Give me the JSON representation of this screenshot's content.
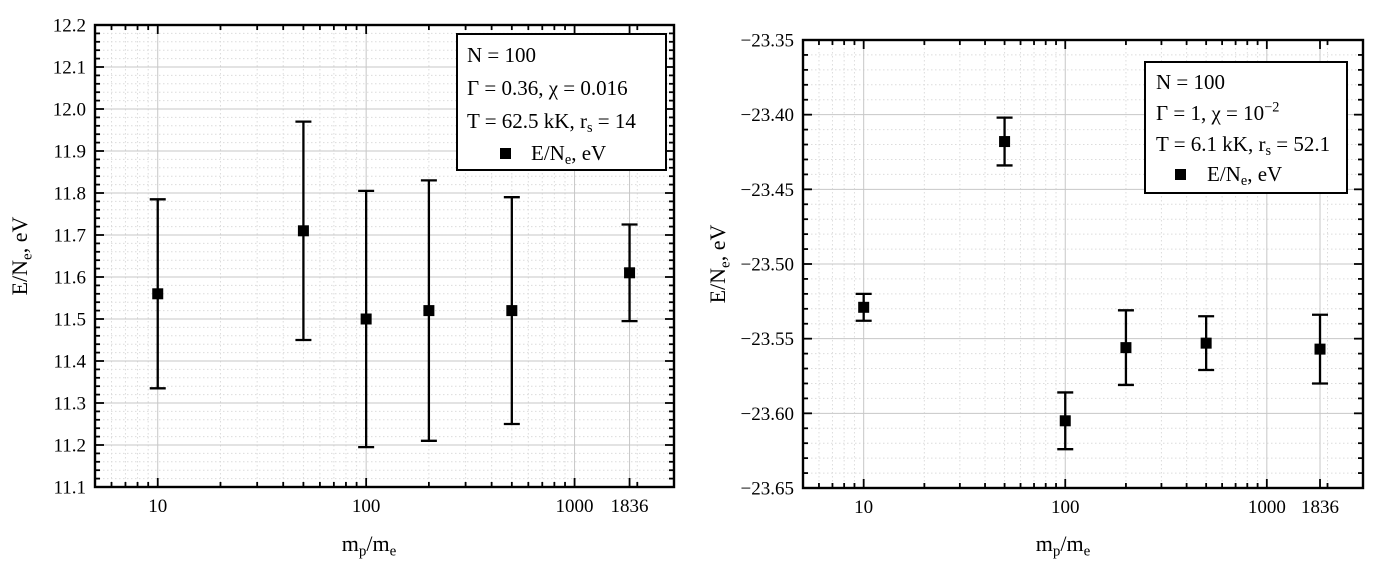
{
  "figure": {
    "background": "#ffffff",
    "ink_color": "#000000",
    "grid_major_color": "#c7c7c7",
    "grid_minor_color": "#dcdcdc",
    "marker_color": "#000000"
  },
  "chart_data": [
    {
      "type": "scatter",
      "panel": "left",
      "x_scale": "log",
      "xlim": [
        5,
        3000
      ],
      "ylim": [
        11.1,
        12.2
      ],
      "y_major_step": 0.1,
      "y_minor_step": 0.02,
      "grid": true,
      "legend_position": "top-right",
      "xlabel": "m_p/m_e",
      "ylabel": "E/N_e, eV",
      "xlabel_segments": [
        {
          "t": "m"
        },
        {
          "t": "p",
          "sub": true
        },
        {
          "t": "/m"
        },
        {
          "t": "e",
          "sub": true
        }
      ],
      "ylabel_segments": [
        {
          "t": "E/N"
        },
        {
          "t": "e",
          "sub": true
        },
        {
          "t": ", eV"
        }
      ],
      "x_major_ticks": [
        {
          "v": 10,
          "label": "10"
        },
        {
          "v": 100,
          "label": "100"
        },
        {
          "v": 1000,
          "label": "1000"
        },
        {
          "v": 1836,
          "label": "1836"
        }
      ],
      "y_tick_labels": [
        "11.1",
        "11.2",
        "11.3",
        "11.4",
        "11.5",
        "11.6",
        "11.7",
        "11.8",
        "11.9",
        "12.0",
        "12.1",
        "12.2"
      ],
      "legend_lines": [
        {
          "segments": [
            {
              "t": "N = 100"
            }
          ]
        },
        {
          "segments": [
            {
              "t": "Γ = 0.36, χ = 0.016"
            }
          ]
        },
        {
          "segments": [
            {
              "t": "T = 62.5 kK, r"
            },
            {
              "t": "s",
              "sub": true
            },
            {
              "t": " = 14"
            }
          ]
        },
        {
          "marker": "filled-square",
          "segments": [
            {
              "t": "E/N"
            },
            {
              "t": "e",
              "sub": true
            },
            {
              "t": ", eV"
            }
          ]
        }
      ],
      "series": [
        {
          "name": "E/N_e, eV",
          "marker": "filled-square",
          "x": [
            10,
            50,
            100,
            200,
            500,
            1836
          ],
          "y": [
            11.56,
            11.71,
            11.5,
            11.52,
            11.52,
            11.61
          ],
          "y_err": [
            0.225,
            0.26,
            0.305,
            0.31,
            0.27,
            0.115
          ]
        }
      ]
    },
    {
      "type": "scatter",
      "panel": "right",
      "x_scale": "log",
      "xlim": [
        5,
        3000
      ],
      "ylim": [
        -23.65,
        -23.35
      ],
      "y_major_step": 0.05,
      "y_minor_step": 0.01,
      "grid": true,
      "legend_position": "top-right",
      "xlabel": "m_p/m_e",
      "ylabel": "E/N_e, eV",
      "xlabel_segments": [
        {
          "t": "m"
        },
        {
          "t": "p",
          "sub": true
        },
        {
          "t": "/m"
        },
        {
          "t": "e",
          "sub": true
        }
      ],
      "ylabel_segments": [
        {
          "t": "E/N"
        },
        {
          "t": "e",
          "sub": true
        },
        {
          "t": ", eV"
        }
      ],
      "x_major_ticks": [
        {
          "v": 10,
          "label": "10"
        },
        {
          "v": 100,
          "label": "100"
        },
        {
          "v": 1000,
          "label": "1000"
        },
        {
          "v": 1836,
          "label": "1836"
        }
      ],
      "y_tick_labels": [
        "−23.65",
        "−23.60",
        "−23.55",
        "−23.50",
        "−23.45",
        "−23.40",
        "−23.35"
      ],
      "legend_lines": [
        {
          "segments": [
            {
              "t": "N = 100"
            }
          ]
        },
        {
          "segments": [
            {
              "t": "Γ = 1, χ = 10"
            },
            {
              "t": "−2",
              "sup": true
            }
          ]
        },
        {
          "segments": [
            {
              "t": "T = 6.1 kK, r"
            },
            {
              "t": "s",
              "sub": true
            },
            {
              "t": " = 52.1"
            }
          ]
        },
        {
          "marker": "filled-square",
          "segments": [
            {
              "t": "E/N"
            },
            {
              "t": "e",
              "sub": true
            },
            {
              "t": ", eV"
            }
          ]
        }
      ],
      "series": [
        {
          "name": "E/N_e, eV",
          "marker": "filled-square",
          "x": [
            10,
            50,
            100,
            200,
            500,
            1836
          ],
          "y": [
            -23.529,
            -23.418,
            -23.605,
            -23.556,
            -23.553,
            -23.557
          ],
          "y_err": [
            0.009,
            0.016,
            0.019,
            0.025,
            0.018,
            0.023
          ]
        }
      ]
    }
  ]
}
